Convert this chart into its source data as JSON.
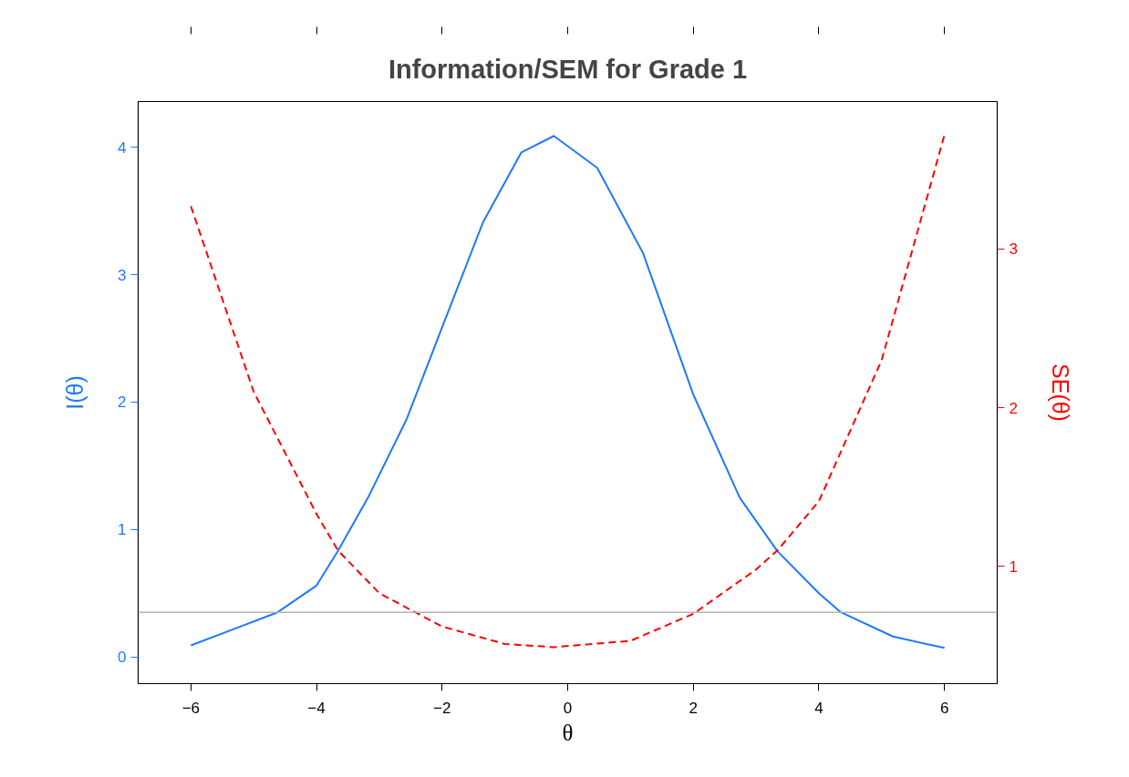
{
  "chart_data": {
    "type": "line",
    "title": "Information/SEM for Grade 1",
    "xlabel": "θ",
    "ylabel": "I(θ)",
    "y2label": "SE(θ)",
    "xlim": [
      -6.84,
      6.84
    ],
    "xticks": [
      -6,
      -4,
      -2,
      0,
      2,
      4,
      6
    ],
    "ylim": [
      -0.21,
      4.36
    ],
    "yticks": [
      0,
      1,
      2,
      3,
      4
    ],
    "y2lim": [
      0.26,
      3.93
    ],
    "y2ticks": [
      1,
      2,
      3
    ],
    "grid": false,
    "series": [
      {
        "color": "#1f78ff",
        "line_style": "solid",
        "x": [
          -6,
          -4.62,
          -4,
          -3.66,
          -3.18,
          -2.57,
          -1.99,
          -1.35,
          -0.74,
          -0.22,
          0.47,
          1.2,
          2,
          2.74,
          3.34,
          4,
          4.35,
          5.18,
          6
        ],
        "values": [
          0.09,
          0.35,
          0.56,
          0.83,
          1.25,
          1.86,
          2.6,
          3.41,
          3.96,
          4.09,
          3.84,
          3.17,
          2.06,
          1.25,
          0.83,
          0.5,
          0.35,
          0.16,
          0.07
        ]
      },
      {
        "color": "#ff0000",
        "line_style": "dashed",
        "axis": "y2",
        "x": [
          -6,
          -5,
          -4,
          -3.66,
          -3,
          -2,
          -1,
          -0.22,
          1,
          2,
          3,
          3.34,
          4,
          5,
          6
        ],
        "values": [
          3.27,
          2.1,
          1.33,
          1.1,
          0.83,
          0.62,
          0.51,
          0.49,
          0.53,
          0.7,
          0.98,
          1.1,
          1.41,
          2.3,
          3.72
        ]
      }
    ],
    "ref_lines": [
      {
        "axis": "y",
        "value": 0.35,
        "color": "#b3b3b3"
      }
    ]
  }
}
